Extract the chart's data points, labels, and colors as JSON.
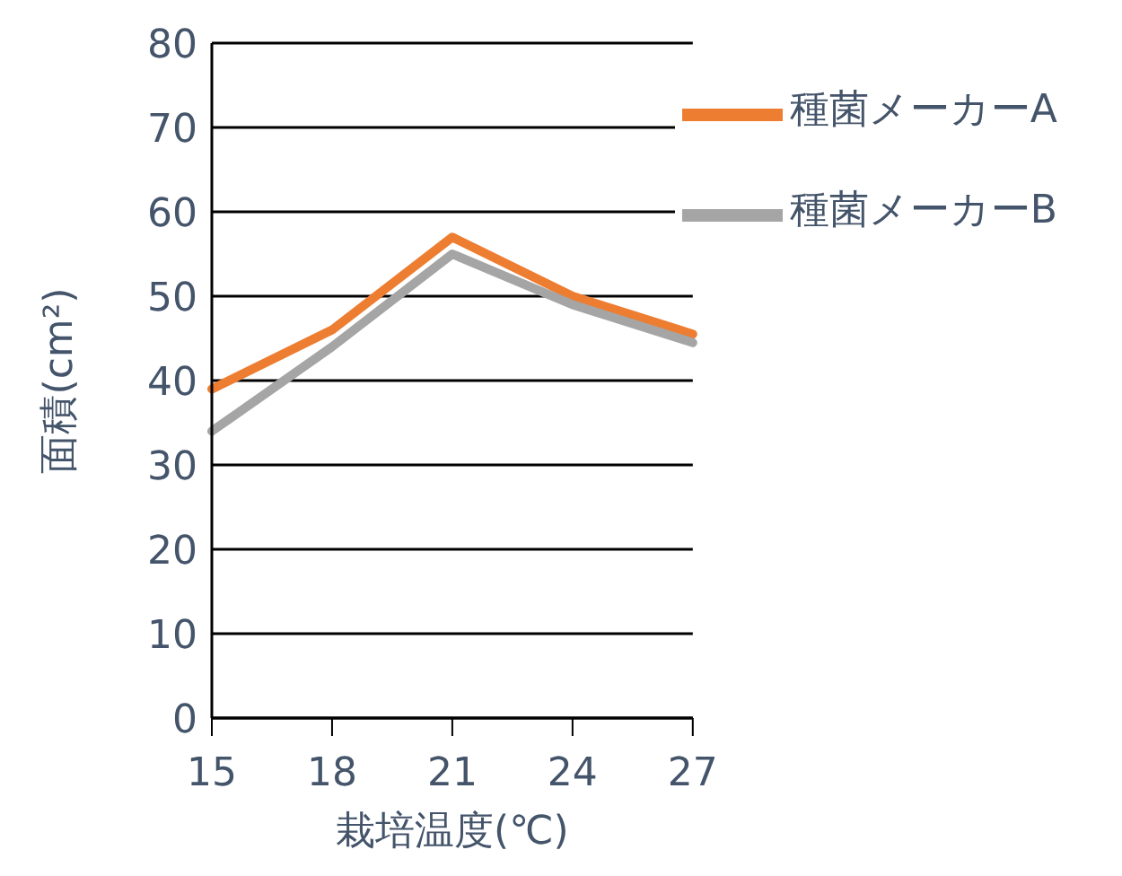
{
  "chart_data": {
    "type": "line",
    "xlabel": "栽培温度(℃)",
    "ylabel": "面積(cm²)",
    "categories": [
      "15",
      "18",
      "21",
      "24",
      "27"
    ],
    "series": [
      {
        "name": "種菌メーカーA",
        "color": "#ed7d31",
        "values": [
          39,
          46,
          57,
          50,
          45.5
        ]
      },
      {
        "name": "種菌メーカーB",
        "color": "#a5a5a5",
        "values": [
          34,
          44,
          55,
          49,
          44.5
        ]
      }
    ],
    "ylim": [
      0,
      80
    ],
    "yticks": [
      0,
      10,
      20,
      30,
      40,
      50,
      60,
      70,
      80
    ],
    "grid": "y",
    "legend": "top right",
    "marker": "none",
    "line_style": "solid"
  }
}
